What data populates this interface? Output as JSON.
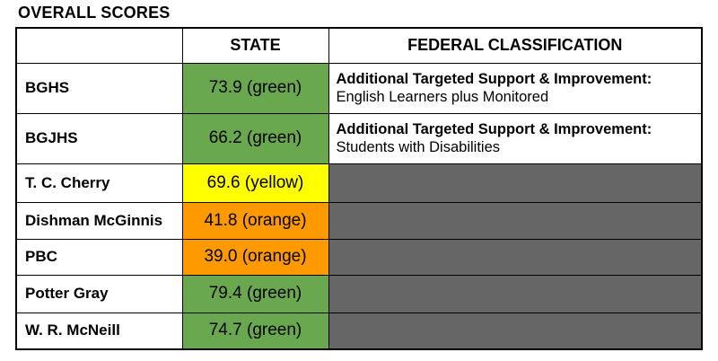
{
  "title": "OVERALL SCORES",
  "colors": {
    "green": "#6aa84f",
    "yellow": "#ffff00",
    "orange": "#ff9900",
    "empty_cell": "#666666"
  },
  "table": {
    "headers": {
      "school": "",
      "state": "STATE",
      "federal": "FEDERAL CLASSIFICATION"
    },
    "rows": [
      {
        "school": "BGHS",
        "score": "73.9 (green)",
        "score_color": "#6aa84f",
        "federal_bold": "Additional Targeted Support & Improvement:",
        "federal_detail": "English Learners plus Monitored"
      },
      {
        "school": "BGJHS",
        "score": "66.2 (green)",
        "score_color": "#6aa84f",
        "federal_bold": "Additional Targeted Support & Improvement:",
        "federal_detail": "Students with Disabilities"
      },
      {
        "school": "T. C. Cherry",
        "score": "69.6 (yellow)",
        "score_color": "#ffff00"
      },
      {
        "school": "Dishman McGinnis",
        "score": "41.8 (orange)",
        "score_color": "#ff9900"
      },
      {
        "school": "PBC",
        "score": "39.0 (orange)",
        "score_color": "#ff9900"
      },
      {
        "school": "Potter Gray",
        "score": "79.4 (green)",
        "score_color": "#6aa84f"
      },
      {
        "school": "W. R. McNeill",
        "score": "74.7 (green)",
        "score_color": "#6aa84f"
      }
    ]
  }
}
